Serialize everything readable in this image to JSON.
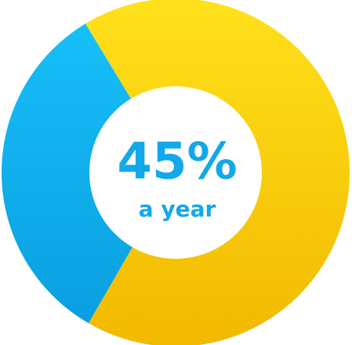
{
  "chart_data": {
    "type": "donut",
    "categories": [
      null,
      null
    ],
    "values": [
      33,
      67
    ],
    "colors": [
      "#0aaef0",
      "#f8c800"
    ],
    "center_label": "45%",
    "center_sublabel": "a year"
  }
}
